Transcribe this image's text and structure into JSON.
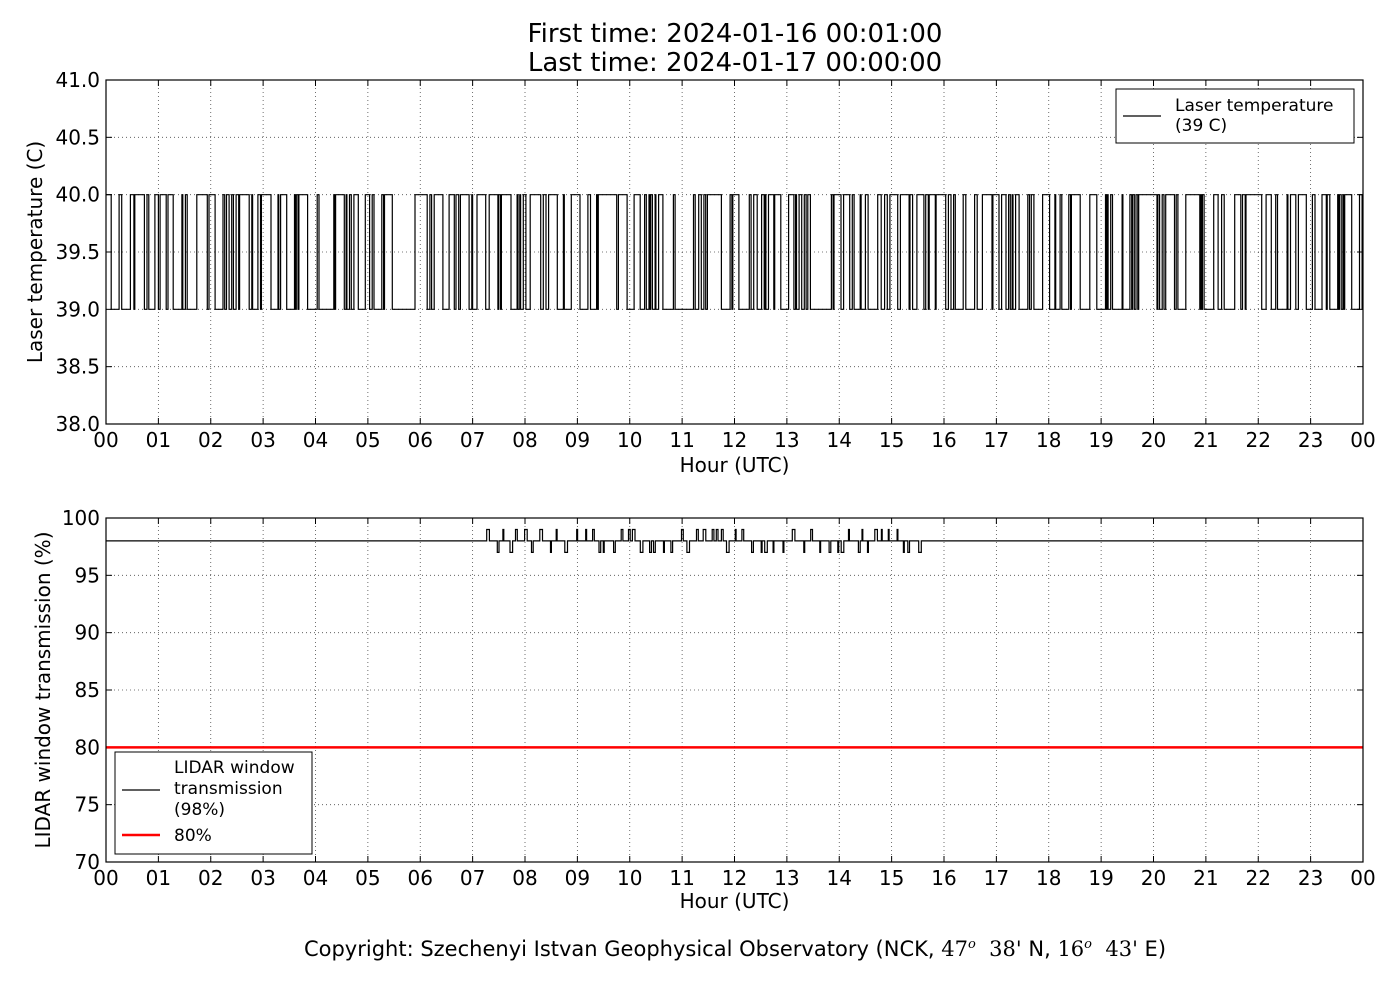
{
  "title_line1": "First time: 2024-01-16 00:01:00",
  "title_line2": "Last time: 2024-01-17 00:00:00",
  "copyright": {
    "prefix": "Copyright: Szechenyi Istvan Geophysical Observatory (NCK, ",
    "lat_deg": "47",
    "lat_min": "38'",
    "lat_hem": "N,",
    "lon_deg": "16",
    "lon_min": "43'",
    "lon_hem": "E)",
    "degree_mark": "o"
  },
  "chart_data": [
    {
      "type": "line",
      "xlabel": "Hour (UTC)",
      "ylabel": "Laser temperature (C)",
      "xlim": [
        0,
        24
      ],
      "ylim": [
        38.0,
        41.0
      ],
      "x_ticks": [
        "00",
        "01",
        "02",
        "03",
        "04",
        "05",
        "06",
        "07",
        "08",
        "09",
        "10",
        "11",
        "12",
        "13",
        "14",
        "15",
        "16",
        "17",
        "18",
        "19",
        "20",
        "21",
        "22",
        "23",
        "00"
      ],
      "y_ticks": [
        "38.0",
        "38.5",
        "39.0",
        "39.5",
        "40.0",
        "40.5",
        "41.0"
      ],
      "grid": true,
      "legend_position": "top-right",
      "series": [
        {
          "name": "Laser temperature\n(39 C)",
          "color": "#000000",
          "description": "one-minute samples alternating between 39.0 and 40.0",
          "levels": [
            39.0,
            40.0
          ],
          "stable_at_39_hours": [
            [
              5.45,
              5.9
            ],
            [
              13.7,
              13.85
            ]
          ]
        }
      ]
    },
    {
      "type": "line",
      "xlabel": "Hour (UTC)",
      "ylabel": "LIDAR window transmission (%)",
      "xlim": [
        0,
        24
      ],
      "ylim": [
        70,
        100
      ],
      "x_ticks": [
        "00",
        "01",
        "02",
        "03",
        "04",
        "05",
        "06",
        "07",
        "08",
        "09",
        "10",
        "11",
        "12",
        "13",
        "14",
        "15",
        "16",
        "17",
        "18",
        "19",
        "20",
        "21",
        "22",
        "23",
        "00"
      ],
      "y_ticks": [
        "70",
        "75",
        "80",
        "85",
        "90",
        "95",
        "100"
      ],
      "grid": true,
      "legend_position": "lower-left",
      "series": [
        {
          "name": "LIDAR window\ntransmission\n(98%)",
          "color": "#000000",
          "baseline": 98,
          "noisy_interval_hours": [
            7.1,
            15.6
          ],
          "spike_values": [
            97,
            99
          ]
        },
        {
          "name": "80%",
          "color": "#ff0000",
          "constant": 80
        }
      ]
    }
  ]
}
